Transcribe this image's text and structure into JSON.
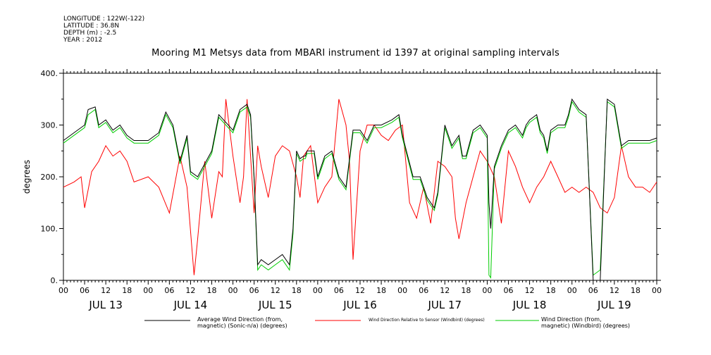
{
  "header": {
    "meta_lines": [
      "LONGITUDE : 122W(-122)",
      "LATITUDE : 36.8N",
      "DEPTH (m) : -2.5",
      "YEAR : 2012"
    ],
    "title": "Mooring M1 Metsys data from MBARI instrument id 1397 at original sampling intervals"
  },
  "chart_data": {
    "type": "line",
    "title": "Mooring M1 Metsys data from MBARI instrument id 1397 at original sampling intervals",
    "xlabel": "",
    "ylabel": "degrees",
    "ylim": [
      0,
      400
    ],
    "xlim_hours": [
      0,
      168
    ],
    "yticks": [
      0,
      100,
      200,
      300,
      400
    ],
    "ytick_labels": [
      "0.",
      "100.",
      "200.",
      "300.",
      "400."
    ],
    "xtick_hour_labels": [
      "00",
      "06",
      "12",
      "18",
      "00",
      "06",
      "12",
      "18",
      "00",
      "06",
      "12",
      "18",
      "00",
      "06",
      "12",
      "18",
      "00",
      "06",
      "12",
      "18",
      "00",
      "06",
      "12",
      "18",
      "00",
      "06",
      "12",
      "18",
      "00"
    ],
    "day_labels": [
      "JUL 13",
      "JUL 14",
      "JUL 15",
      "JUL 16",
      "JUL 17",
      "JUL 18",
      "JUL 19"
    ],
    "grid": false,
    "legend_position": "bottom",
    "x_unit": "hours since JUL 13 00:00",
    "series": [
      {
        "name": "Average Wind Direction (from, magnetic) (Sonic-n/a) (degrees)",
        "color": "#000000",
        "x": [
          0,
          3,
          6,
          7,
          9,
          10,
          12,
          14,
          16,
          18,
          20,
          24,
          27,
          29,
          31,
          33,
          35,
          36,
          38,
          42,
          44,
          48,
          50,
          52,
          53,
          54,
          55,
          56,
          58,
          60,
          62,
          64,
          65,
          66,
          67,
          68,
          68.5,
          69,
          71,
          72,
          74,
          76,
          78,
          80,
          82,
          84,
          86,
          88,
          90,
          93,
          95,
          96,
          99,
          101,
          103,
          105,
          106,
          108,
          110,
          111,
          112,
          113,
          114,
          116,
          118,
          120,
          120.5,
          121,
          122,
          124,
          126,
          128,
          130,
          131,
          132,
          134,
          135,
          136,
          137,
          138,
          140,
          142,
          143,
          144,
          146,
          148,
          150,
          152,
          154,
          156,
          158,
          160,
          161,
          162,
          163,
          164,
          165,
          166,
          168
        ],
        "y": [
          270,
          285,
          300,
          330,
          335,
          300,
          310,
          290,
          300,
          280,
          270,
          270,
          285,
          325,
          300,
          230,
          280,
          210,
          200,
          250,
          320,
          290,
          330,
          340,
          320,
          200,
          30,
          40,
          30,
          40,
          50,
          30,
          100,
          250,
          235,
          240,
          240,
          250,
          250,
          200,
          240,
          250,
          200,
          180,
          290,
          290,
          270,
          300,
          300,
          310,
          320,
          280,
          200,
          200,
          160,
          140,
          170,
          300,
          260,
          270,
          280,
          240,
          240,
          290,
          300,
          280,
          150,
          100,
          220,
          260,
          290,
          300,
          280,
          300,
          310,
          320,
          290,
          280,
          250,
          290,
          300,
          300,
          320,
          350,
          330,
          320,
          0,
          0,
          350,
          340,
          260,
          270,
          270,
          270,
          270,
          270,
          270,
          270,
          275
        ],
        "note": "black line"
      },
      {
        "name": "Wind Direction Relative to Sensor (Windbird) (degrees)",
        "color": "#ff0000",
        "x": [
          0,
          3,
          5,
          6,
          8,
          10,
          12,
          14,
          16,
          18,
          20,
          24,
          27,
          30,
          33,
          35,
          37,
          38,
          40,
          42,
          44,
          45,
          46,
          48,
          50,
          51,
          52,
          53,
          54,
          55,
          56,
          58,
          60,
          62,
          64,
          66,
          67,
          68,
          70,
          72,
          74,
          76,
          78,
          80,
          81,
          82,
          84,
          86,
          88,
          90,
          92,
          94,
          96,
          98,
          100,
          102,
          104,
          106,
          108,
          110,
          111,
          112,
          114,
          116,
          118,
          120,
          122,
          124,
          126,
          128,
          130,
          132,
          134,
          136,
          138,
          140,
          142,
          144,
          146,
          148,
          150,
          152,
          154,
          156,
          158,
          160,
          162,
          164,
          166,
          168
        ],
        "y": [
          180,
          190,
          200,
          140,
          210,
          230,
          260,
          240,
          250,
          230,
          190,
          200,
          180,
          130,
          240,
          180,
          10,
          80,
          230,
          120,
          210,
          200,
          350,
          240,
          150,
          200,
          350,
          240,
          130,
          260,
          220,
          160,
          240,
          260,
          250,
          200,
          160,
          240,
          260,
          150,
          180,
          200,
          350,
          300,
          230,
          40,
          250,
          300,
          300,
          280,
          270,
          290,
          300,
          150,
          120,
          180,
          110,
          230,
          220,
          200,
          120,
          80,
          150,
          200,
          250,
          230,
          200,
          110,
          250,
          220,
          180,
          150,
          180,
          200,
          230,
          200,
          170,
          180,
          170,
          180,
          170,
          140,
          130,
          160,
          260,
          200,
          180,
          180,
          170,
          190
        ],
        "note": "red line"
      },
      {
        "name": "Wind Direction (from, magnetic) (Windbird) (degrees)",
        "color": "#00cc00",
        "x": [
          0,
          3,
          6,
          7,
          9,
          10,
          12,
          14,
          16,
          18,
          20,
          24,
          27,
          29,
          31,
          33,
          35,
          36,
          38,
          42,
          44,
          48,
          50,
          52,
          53,
          54,
          55,
          56,
          58,
          60,
          62,
          64,
          65,
          66,
          67,
          68,
          68.5,
          69,
          71,
          72,
          74,
          76,
          78,
          80,
          82,
          84,
          86,
          88,
          90,
          93,
          95,
          96,
          99,
          101,
          103,
          105,
          106,
          108,
          110,
          111,
          112,
          113,
          114,
          116,
          118,
          120,
          120.5,
          121,
          122,
          124,
          126,
          128,
          130,
          131,
          132,
          134,
          135,
          136,
          137,
          138,
          140,
          142,
          143,
          144,
          146,
          148,
          150,
          152,
          154,
          156,
          158,
          160,
          161,
          162,
          163,
          164,
          165,
          166,
          168
        ],
        "y": [
          265,
          280,
          295,
          320,
          330,
          295,
          305,
          285,
          295,
          275,
          265,
          265,
          280,
          320,
          295,
          225,
          275,
          205,
          195,
          245,
          315,
          285,
          325,
          335,
          315,
          195,
          20,
          30,
          20,
          30,
          40,
          20,
          90,
          245,
          230,
          235,
          235,
          245,
          245,
          195,
          235,
          245,
          195,
          175,
          285,
          285,
          265,
          295,
          295,
          305,
          315,
          275,
          195,
          195,
          155,
          135,
          165,
          295,
          255,
          265,
          275,
          235,
          235,
          285,
          295,
          275,
          10,
          5,
          215,
          255,
          285,
          295,
          275,
          295,
          305,
          315,
          285,
          275,
          245,
          285,
          295,
          295,
          315,
          345,
          325,
          315,
          10,
          20,
          345,
          335,
          255,
          265,
          265,
          265,
          265,
          265,
          265,
          265,
          270
        ],
        "note": "green line"
      }
    ]
  },
  "legend": {
    "entries": [
      {
        "line1": "Average Wind Direction (from,",
        "line2": "magnetic) (Sonic-n/a) (degrees)",
        "color": "#000000"
      },
      {
        "line1": "Wind Direction Relative to Sensor (Windbird) (degrees)",
        "line2": "",
        "color": "#ff0000"
      },
      {
        "line1": "Wind Direction (from,",
        "line2": "magnetic) (Windbird) (degrees)",
        "color": "#00cc00"
      }
    ]
  }
}
